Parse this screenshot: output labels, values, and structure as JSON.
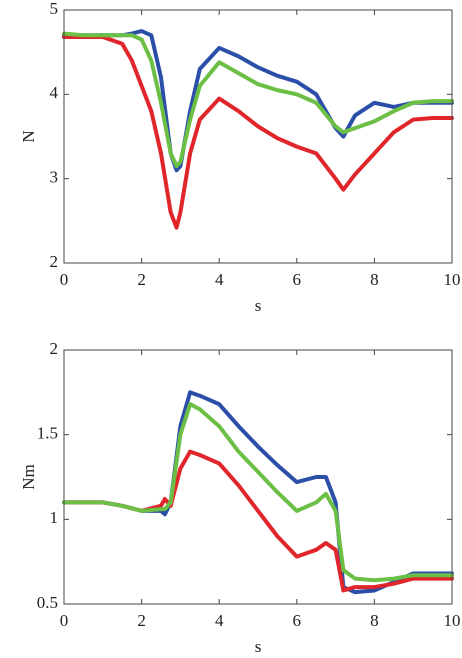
{
  "chart_data": [
    {
      "type": "line",
      "x_label": "s",
      "y_label": "N",
      "xlim": [
        0,
        10
      ],
      "xticks": [
        0,
        2,
        4,
        6,
        8,
        10
      ],
      "ylim": [
        2,
        5
      ],
      "yticks": [
        2,
        3,
        4,
        5
      ],
      "x": [
        0,
        0.5,
        1,
        1.5,
        1.75,
        2,
        2.25,
        2.5,
        2.75,
        2.9,
        3,
        3.25,
        3.5,
        4,
        4.5,
        5,
        5.5,
        6,
        6.5,
        7,
        7.2,
        7.5,
        8,
        8.5,
        9,
        9.5,
        10
      ],
      "series": [
        {
          "color": "#2b4fa8",
          "values": [
            4.7,
            4.7,
            4.7,
            4.7,
            4.72,
            4.75,
            4.7,
            4.2,
            3.3,
            3.1,
            3.15,
            3.8,
            4.3,
            4.55,
            4.45,
            4.32,
            4.22,
            4.15,
            4.0,
            3.6,
            3.5,
            3.75,
            3.9,
            3.85,
            3.9,
            3.9,
            3.9
          ]
        },
        {
          "color": "#e0262a",
          "values": [
            4.68,
            4.68,
            4.68,
            4.6,
            4.4,
            4.1,
            3.8,
            3.3,
            2.6,
            2.42,
            2.6,
            3.3,
            3.7,
            3.95,
            3.8,
            3.62,
            3.48,
            3.38,
            3.3,
            3.0,
            2.87,
            3.05,
            3.3,
            3.55,
            3.7,
            3.72,
            3.72
          ]
        },
        {
          "color": "#6cbf45",
          "values": [
            4.72,
            4.7,
            4.7,
            4.7,
            4.7,
            4.65,
            4.4,
            3.9,
            3.3,
            3.15,
            3.2,
            3.7,
            4.1,
            4.38,
            4.25,
            4.12,
            4.05,
            4.0,
            3.9,
            3.62,
            3.55,
            3.6,
            3.68,
            3.8,
            3.9,
            3.92,
            3.92
          ]
        }
      ]
    },
    {
      "type": "line",
      "x_label": "s",
      "y_label": "Nm",
      "xlim": [
        0,
        10
      ],
      "xticks": [
        0,
        2,
        4,
        6,
        8,
        10
      ],
      "ylim": [
        0.5,
        2
      ],
      "yticks": [
        0.5,
        1,
        1.5,
        2
      ],
      "x": [
        0,
        0.5,
        1,
        1.5,
        2,
        2.5,
        2.6,
        2.75,
        3,
        3.25,
        3.5,
        4,
        4.5,
        5,
        5.5,
        6,
        6.5,
        6.75,
        7,
        7.2,
        7.5,
        8,
        8.5,
        9,
        9.5,
        10
      ],
      "series": [
        {
          "color": "#2b4fa8",
          "values": [
            1.1,
            1.1,
            1.1,
            1.08,
            1.05,
            1.05,
            1.03,
            1.1,
            1.55,
            1.75,
            1.73,
            1.68,
            1.55,
            1.43,
            1.32,
            1.22,
            1.25,
            1.25,
            1.1,
            0.6,
            0.57,
            0.58,
            0.63,
            0.68,
            0.68,
            0.68
          ]
        },
        {
          "color": "#e0262a",
          "values": [
            1.1,
            1.1,
            1.1,
            1.08,
            1.05,
            1.08,
            1.12,
            1.08,
            1.3,
            1.4,
            1.38,
            1.33,
            1.2,
            1.05,
            0.9,
            0.78,
            0.82,
            0.86,
            0.82,
            0.58,
            0.6,
            0.6,
            0.62,
            0.65,
            0.65,
            0.65
          ]
        },
        {
          "color": "#6cbf45",
          "values": [
            1.1,
            1.1,
            1.1,
            1.08,
            1.05,
            1.06,
            1.06,
            1.1,
            1.5,
            1.68,
            1.65,
            1.55,
            1.4,
            1.28,
            1.16,
            1.05,
            1.1,
            1.15,
            1.05,
            0.7,
            0.65,
            0.64,
            0.65,
            0.67,
            0.67,
            0.67
          ]
        }
      ]
    }
  ]
}
